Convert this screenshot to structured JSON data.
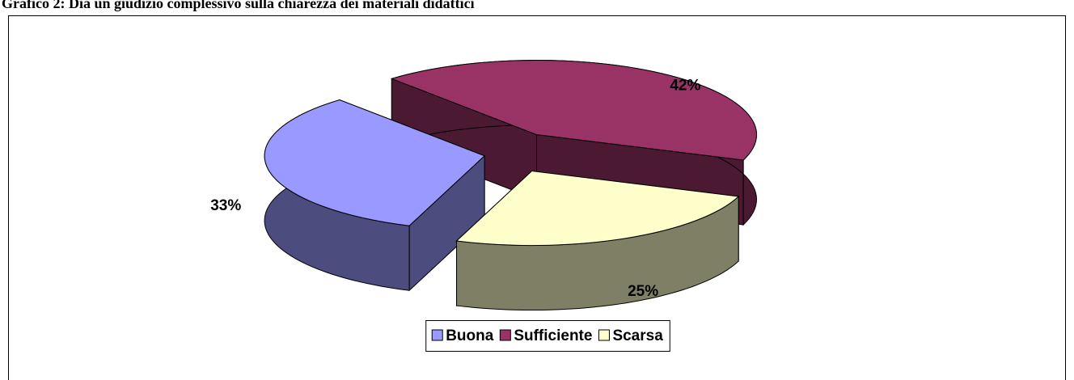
{
  "chart_data": {
    "type": "pie3d",
    "title": "Grafico 2: Dia un giudizio complessivo sulla chiarezza dei materiali didattici",
    "categories": [
      "Buona",
      "Sufficiente",
      "Scarsa"
    ],
    "values": [
      33,
      42,
      25
    ],
    "value_labels": [
      "33%",
      "42%",
      "25%"
    ],
    "colors": [
      "#9999ff",
      "#993366",
      "#ffffcc"
    ],
    "legend": "bottom"
  }
}
